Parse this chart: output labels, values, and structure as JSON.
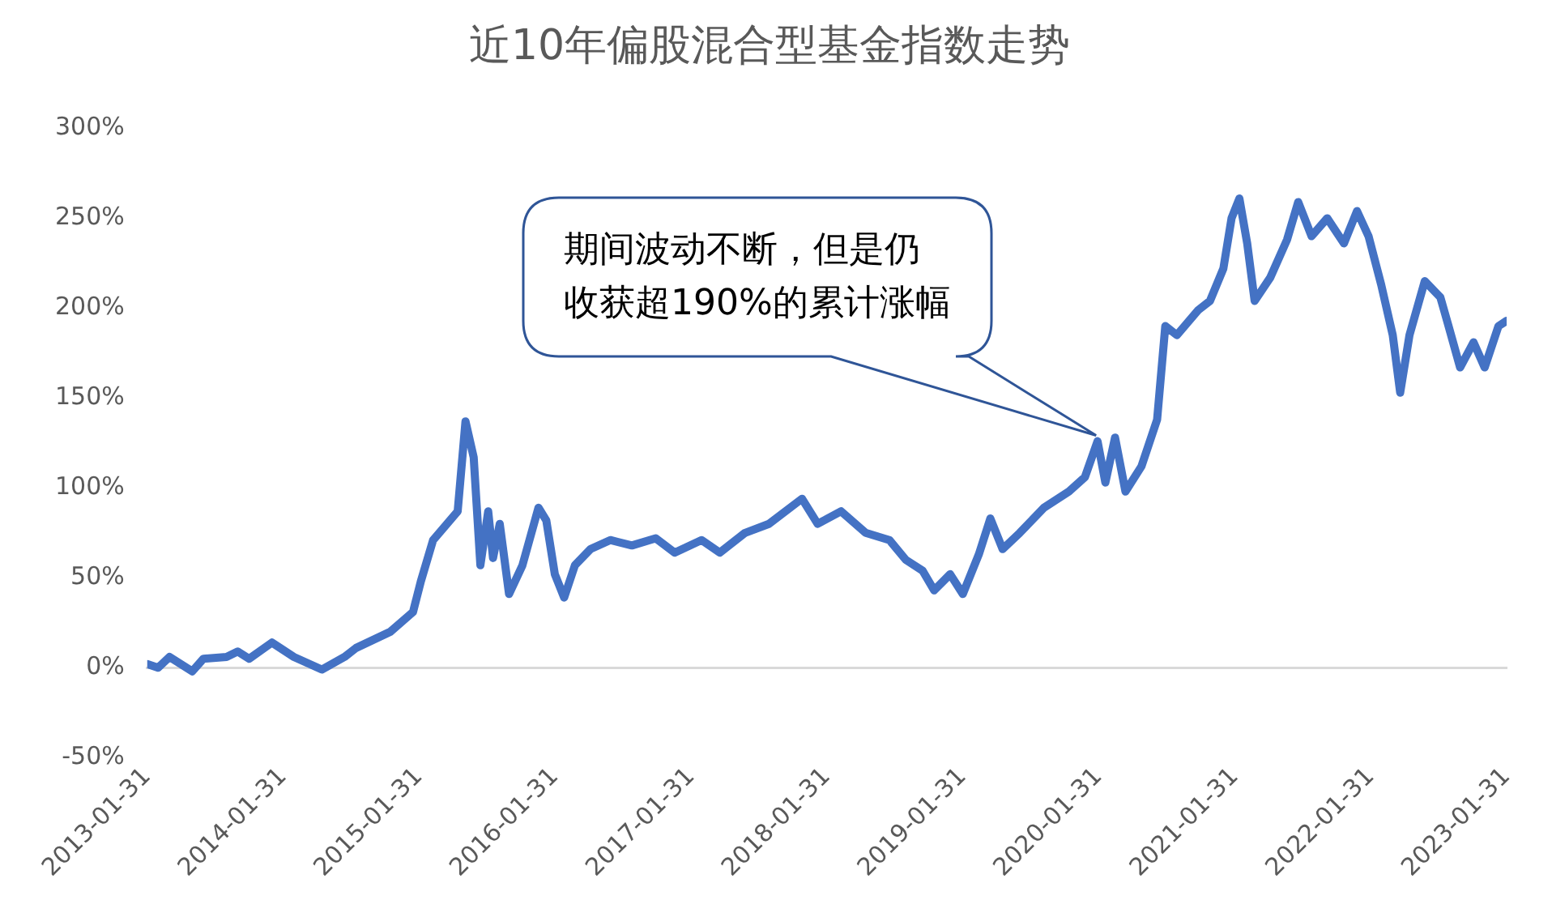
{
  "chart_data": {
    "type": "line",
    "title": "近10年偏股混合型基金指数走势",
    "x": [
      "2013-01-31",
      "2013-03-01",
      "2013-04-01",
      "2013-06-01",
      "2013-07-01",
      "2013-09-01",
      "2013-10-01",
      "2013-11-01",
      "2014-01-01",
      "2014-03-01",
      "2014-05-15",
      "2014-07-15",
      "2014-08-15",
      "2014-11-15",
      "2015-01-15",
      "2015-02-05",
      "2015-03-10",
      "2015-05-15",
      "2015-06-05",
      "2015-06-27",
      "2015-07-15",
      "2015-08-05",
      "2015-08-18",
      "2015-09-05",
      "2015-09-30",
      "2015-11-05",
      "2015-12-18",
      "2016-01-08",
      "2016-01-31",
      "2016-02-25",
      "2016-03-25",
      "2016-05-06",
      "2016-06-28",
      "2016-08-25",
      "2016-10-28",
      "2016-12-18",
      "2017-02-28",
      "2017-04-18",
      "2017-06-25",
      "2017-08-28",
      "2017-11-25",
      "2018-01-06",
      "2018-03-10",
      "2018-05-15",
      "2018-07-18",
      "2018-08-31",
      "2018-10-15",
      "2018-11-15",
      "2018-12-28",
      "2019-01-31",
      "2019-03-15",
      "2019-04-15",
      "2019-05-18",
      "2019-07-03",
      "2019-09-06",
      "2019-11-12",
      "2019-12-25",
      "2020-01-28",
      "2020-02-18",
      "2020-03-15",
      "2020-04-12",
      "2020-05-25",
      "2020-07-06",
      "2020-07-28",
      "2020-08-28",
      "2020-10-25",
      "2020-11-25",
      "2020-12-31",
      "2021-01-22",
      "2021-02-12",
      "2021-03-05",
      "2021-03-25",
      "2021-05-06",
      "2021-06-20",
      "2021-07-20",
      "2021-08-25",
      "2021-10-06",
      "2021-11-20",
      "2021-12-25",
      "2022-01-25",
      "2022-02-28",
      "2022-03-31",
      "2022-04-20",
      "2022-05-15",
      "2022-06-25",
      "2022-08-06",
      "2022-08-28",
      "2022-09-28",
      "2022-11-03",
      "2022-12-03",
      "2023-01-09",
      "2023-01-31"
    ],
    "series": [
      {
        "color": "#4472c4",
        "values": [
          2,
          0,
          6,
          -2,
          5,
          6,
          9,
          5,
          14,
          6,
          -1,
          6,
          11,
          20,
          31,
          48,
          71,
          87,
          137,
          117,
          57,
          87,
          61,
          80,
          41,
          57,
          89,
          82,
          52,
          39,
          57,
          66,
          71,
          68,
          72,
          64,
          71,
          64,
          75,
          80,
          94,
          80,
          87,
          75,
          71,
          60,
          54,
          43,
          52,
          41,
          63,
          83,
          66,
          75,
          89,
          98,
          106,
          126,
          103,
          128,
          98,
          112,
          138,
          190,
          185,
          199,
          204,
          222,
          250,
          261,
          236,
          204,
          217,
          238,
          259,
          240,
          250,
          236,
          254,
          240,
          213,
          185,
          153,
          185,
          215,
          206,
          190,
          167,
          181,
          167,
          190,
          193
        ]
      }
    ],
    "xlim": [
      "2013-01-31",
      "2023-01-31"
    ],
    "xticks": [
      "2013-01-31",
      "2014-01-31",
      "2015-01-31",
      "2016-01-31",
      "2017-01-31",
      "2018-01-31",
      "2019-01-31",
      "2020-01-31",
      "2021-01-31",
      "2022-01-31",
      "2023-01-31"
    ],
    "ylim": [
      -50,
      300
    ],
    "yticks": [
      {
        "value": -50,
        "label": "-50%"
      },
      {
        "value": 0,
        "label": "0%"
      },
      {
        "value": 50,
        "label": "50%"
      },
      {
        "value": 100,
        "label": "100%"
      },
      {
        "value": 150,
        "label": "150%"
      },
      {
        "value": 200,
        "label": "200%"
      },
      {
        "value": 250,
        "label": "250%"
      },
      {
        "value": 300,
        "label": "300%"
      }
    ],
    "legend": false,
    "marker": "none",
    "line_style": "solid",
    "annotations": [
      "期间波动不断，但是仍",
      "收获超190%的累计涨幅"
    ]
  }
}
